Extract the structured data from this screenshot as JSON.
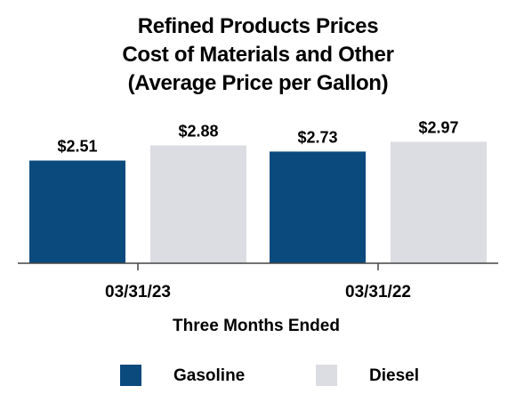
{
  "chart_data": {
    "type": "bar",
    "title_lines": [
      "Refined Products Prices",
      "Cost of Materials and Other",
      "(Average Price per Gallon)"
    ],
    "categories": [
      "03/31/23",
      "03/31/22"
    ],
    "series": [
      {
        "name": "Gasoline",
        "values": [
          2.51,
          2.73
        ],
        "labels": [
          "$2.51",
          "$2.73"
        ],
        "color": "#0b4a7d"
      },
      {
        "name": "Diesel",
        "values": [
          2.88,
          2.97
        ],
        "labels": [
          "$2.88",
          "$2.97"
        ],
        "color": "#dcdde2"
      }
    ],
    "xlabel": "Three Months Ended",
    "ylabel": "",
    "ylim": [
      0,
      3.8
    ],
    "grid": false,
    "legend_position": "bottom"
  }
}
